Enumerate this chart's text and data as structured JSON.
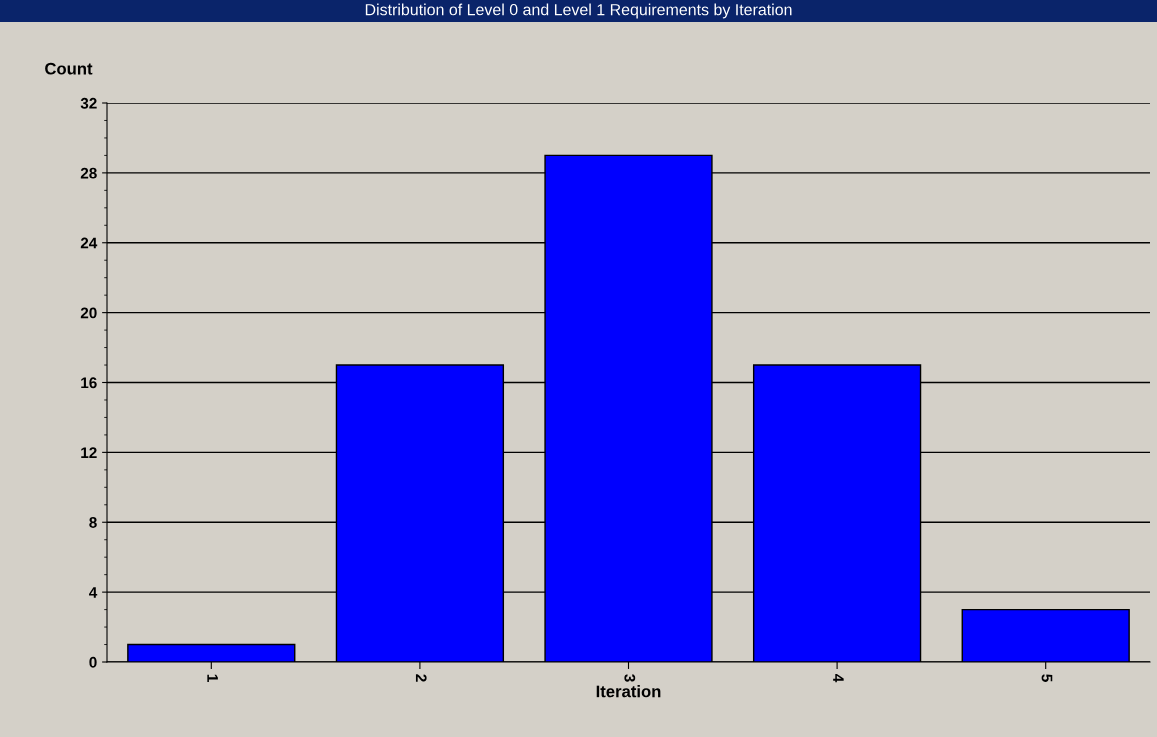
{
  "chart_data": {
    "type": "bar",
    "title": "Distribution of Level 0 and Level 1 Requirements by Iteration",
    "xlabel": "Iteration",
    "ylabel": "Count",
    "categories": [
      "1",
      "2",
      "3",
      "4",
      "5"
    ],
    "values": [
      1,
      17,
      29,
      17,
      3
    ],
    "color": "#0000ff",
    "ylim": [
      0,
      32
    ],
    "yticks": [
      0,
      4,
      8,
      12,
      16,
      20,
      24,
      28,
      32
    ],
    "grid": "y",
    "legend": false
  }
}
